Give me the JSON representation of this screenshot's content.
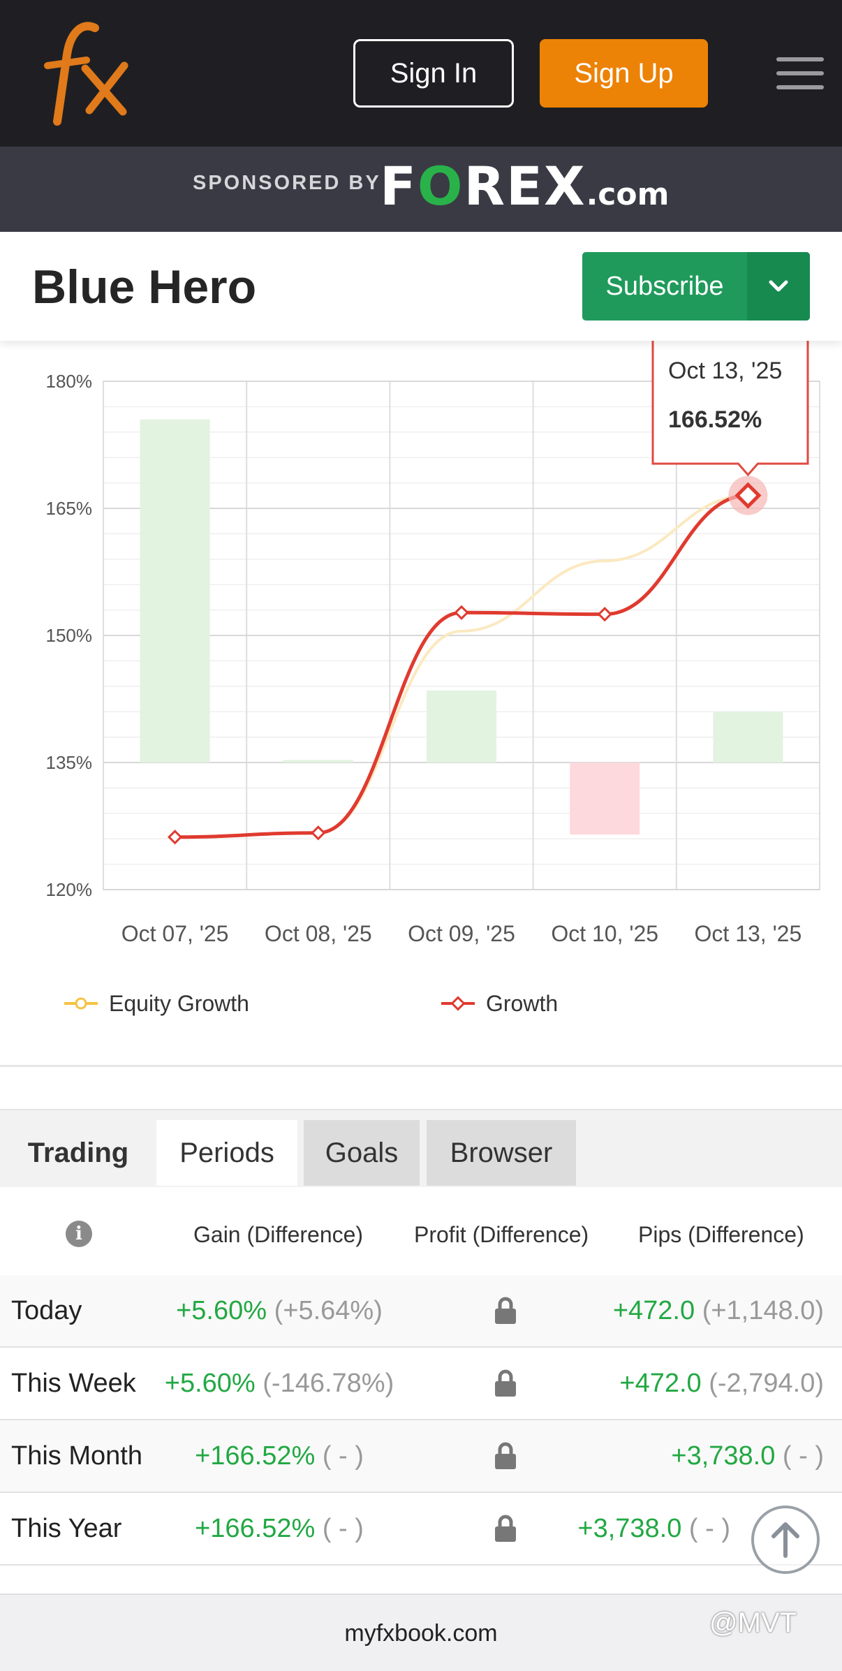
{
  "header": {
    "logo_icon": "fx-logo-icon",
    "sign_in": "Sign In",
    "sign_up": "Sign Up",
    "menu_icon": "hamburger-menu-icon",
    "brand_orange": "#ec8206"
  },
  "sponsor": {
    "label": "SPONSORED BY",
    "brand": {
      "f": "F",
      "o": "O",
      "rest": "REX",
      "com": ".com"
    }
  },
  "system": {
    "name": "Blue Hero",
    "subscribe": "Subscribe",
    "subscribe_color": "#1f9a5b"
  },
  "chart_data": {
    "type": "line",
    "categories": [
      "Oct 07, '25",
      "Oct 08, '25",
      "Oct 09, '25",
      "Oct 10, '25",
      "Oct 13, '25"
    ],
    "y_ticks": [
      "180%",
      "165%",
      "150%",
      "135%",
      "120%"
    ],
    "ylim": [
      120,
      180
    ],
    "grid": true,
    "legend_position": "bottom",
    "series": [
      {
        "name": "Equity Growth",
        "type": "line",
        "color": "#f5c342",
        "values": [
          126.2,
          126.7,
          150.5,
          158.8,
          166.5
        ]
      },
      {
        "name": "Growth",
        "type": "line",
        "color": "#e03a2f",
        "values": [
          126.2,
          126.7,
          152.7,
          152.5,
          166.52
        ]
      }
    ],
    "daily_bars": {
      "base": 135,
      "values": [
        175.5,
        135.3,
        143.5,
        126.5,
        141.0
      ]
    },
    "tooltip": {
      "date": "Oct 13, '25",
      "value": "166.52%"
    }
  },
  "tabs": [
    {
      "label": "Trading"
    },
    {
      "label": "Periods"
    },
    {
      "label": "Goals"
    },
    {
      "label": "Browser"
    }
  ],
  "table": {
    "info_icon": "info-icon",
    "headers": [
      "Gain (Difference)",
      "Profit (Difference)",
      "Pips (Difference)"
    ],
    "rows": [
      {
        "period": "Today",
        "gain": "+5.60%",
        "gain_diff": "(+5.64%)",
        "lock_icon": "lock-icon",
        "pips": "+472.0",
        "pips_diff": "(+1,148.0)"
      },
      {
        "period": "This Week",
        "gain": "+5.60%",
        "gain_diff": "(-146.78%)",
        "lock_icon": "lock-icon",
        "pips": "+472.0",
        "pips_diff": "(-2,794.0)"
      },
      {
        "period": "This Month",
        "gain": "+166.52%",
        "gain_diff": "( - )",
        "lock_icon": "lock-icon",
        "pips": "+3,738.0",
        "pips_diff": "( - )"
      },
      {
        "period": "This Year",
        "gain": "+166.52%",
        "gain_diff": "( - )",
        "lock_icon": "lock-icon",
        "pips": "+3,738.0",
        "pips_diff": "( - )"
      }
    ]
  },
  "footer": {
    "url": "myfxbook.com",
    "watermark": "@MVT",
    "scroll_top_icon": "arrow-up-circle-icon"
  }
}
